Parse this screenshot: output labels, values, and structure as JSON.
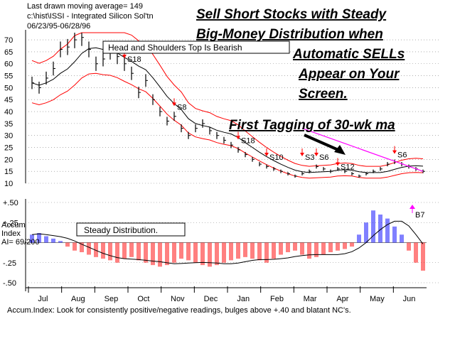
{
  "header": {
    "line1": "Last drawn moving average= 149",
    "line2": "c:\\hist\\ISSI  -  Integrated Silicon Sol'tn",
    "line3": "06/23/95-06/28/96"
  },
  "headlines": [
    "Sell Short Stocks with Steady",
    "Big-Money Distribution when",
    "Automatic SELLs",
    "Appear on Your",
    "Screen."
  ],
  "annotations": {
    "hs_box": "Head and Shoulders Top Is Bearish",
    "first_tag": "First Tagging of 30-wk ma",
    "steady_box": "Steady Distribution.",
    "accum_label_1": "Accum",
    "accum_label_2": "Index",
    "ai_value": "AI= 69/200",
    "footer": "Accum.Index: Look for consistently positive/negative readings, bulges above +.40 and blatant NC's."
  },
  "colors": {
    "price": "#000000",
    "bands": "#ff0000",
    "ma30": "#000000",
    "steep_line": "#ff00ff",
    "accum_pos": "#0000ff",
    "accum_neg": "#ff0000",
    "grid": "#7f7f7f",
    "sell_arrow": "#ff0000",
    "buy_arrow": "#00aa00"
  },
  "chart_data": [
    {
      "type": "line",
      "name": "price",
      "y_ticks": [
        70,
        65,
        60,
        55,
        50,
        45,
        40,
        35,
        30,
        25,
        20,
        15,
        10
      ],
      "ylim": [
        10,
        73
      ],
      "x_months": [
        "Jul",
        "Aug",
        "Sep",
        "Oct",
        "Nov",
        "Dec",
        "Jan",
        "Feb",
        "Mar",
        "Apr",
        "May",
        "Jun"
      ],
      "weekly_close": [
        52,
        50,
        54,
        58,
        66,
        67,
        70,
        71,
        66,
        60,
        62,
        65,
        63,
        60,
        56,
        48,
        53,
        45,
        40,
        36,
        38,
        33,
        30,
        33,
        35,
        32,
        30,
        28,
        26,
        24,
        22,
        20,
        18,
        17,
        16,
        15,
        14,
        13,
        14,
        15,
        17,
        16,
        15,
        16,
        15,
        14,
        13,
        14,
        15,
        16,
        18,
        19,
        18,
        17,
        16,
        15
      ],
      "signals": [
        {
          "label": "S18",
          "x_week": 13,
          "price": 62,
          "color": "sell"
        },
        {
          "label": "S8",
          "x_week": 20,
          "price": 42,
          "color": "sell"
        },
        {
          "label": "S18",
          "x_week": 29,
          "price": 28,
          "color": "sell"
        },
        {
          "label": "S10",
          "x_week": 33,
          "price": 21,
          "color": "sell"
        },
        {
          "label": "S3",
          "x_week": 38,
          "price": 21,
          "color": "sell"
        },
        {
          "label": "S6",
          "x_week": 40,
          "price": 21,
          "color": "sell"
        },
        {
          "label": "S12",
          "x_week": 43,
          "price": 17,
          "color": "sell"
        },
        {
          "label": "S6",
          "x_week": 51,
          "price": 22,
          "color": "sell"
        }
      ]
    },
    {
      "type": "bar",
      "name": "accumulation index",
      "y_ticks": [
        "+.50",
        "+.25",
        "-.25",
        "-.50"
      ],
      "ylim": [
        -0.5,
        0.5
      ],
      "signal_label": "B7",
      "values": [
        0.1,
        0.12,
        0.08,
        0.05,
        0.02,
        -0.05,
        -0.1,
        -0.12,
        -0.15,
        -0.18,
        -0.2,
        -0.22,
        -0.25,
        -0.2,
        -0.18,
        -0.22,
        -0.25,
        -0.28,
        -0.3,
        -0.28,
        -0.25,
        -0.2,
        -0.22,
        -0.25,
        -0.28,
        -0.3,
        -0.28,
        -0.25,
        -0.22,
        -0.2,
        -0.18,
        -0.2,
        -0.22,
        -0.25,
        -0.2,
        -0.15,
        -0.12,
        -0.1,
        -0.15,
        -0.2,
        -0.18,
        -0.15,
        -0.12,
        -0.1,
        -0.08,
        -0.05,
        0.1,
        0.25,
        0.4,
        0.35,
        0.3,
        0.2,
        0.1,
        -0.1,
        -0.25,
        -0.35
      ]
    }
  ]
}
